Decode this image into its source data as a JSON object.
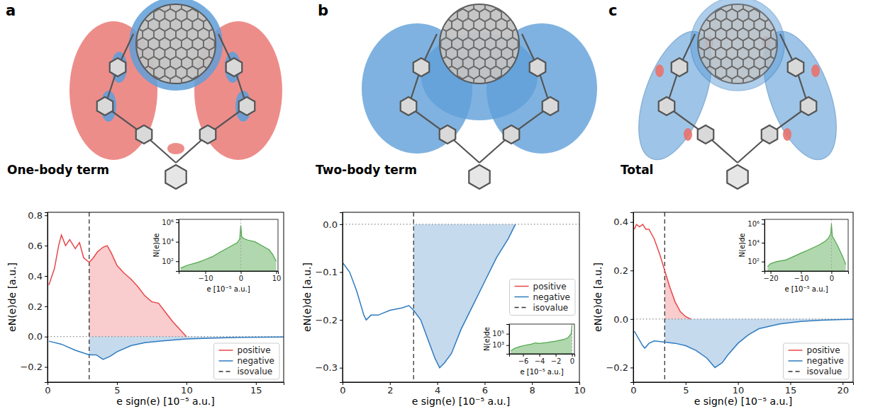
{
  "chart_data": [
    {
      "type": "line",
      "panel_label": "a",
      "title": "One-body term",
      "x_label": "e sign(e)  [10⁻⁵ a.u.]",
      "y_label": "eN(e)de  [a.u.]",
      "xlim": [
        0,
        17
      ],
      "xticks": [
        0,
        5,
        10,
        15
      ],
      "ylim": [
        -0.3,
        0.82
      ],
      "yticks": [
        {
          "value": -0.2,
          "label": "−0.2"
        },
        {
          "value": 0,
          "label": "0.0"
        },
        0.2,
        0.4,
        0.6,
        0.8
      ],
      "legend": "lower right",
      "series": [
        {
          "name": "positive",
          "color": "#e8474a",
          "line_style": "solid",
          "x": [
            0.1,
            0.5,
            0.8,
            1.0,
            1.3,
            1.6,
            2.0,
            2.3,
            2.6,
            3.0,
            3.3,
            3.6,
            4.0,
            4.3,
            4.6,
            5.0,
            5.5,
            6.0,
            6.5,
            7.0,
            7.5,
            8.0,
            8.5,
            9.0,
            9.5,
            10.0
          ],
          "values": [
            0.34,
            0.45,
            0.6,
            0.67,
            0.6,
            0.64,
            0.58,
            0.62,
            0.52,
            0.49,
            0.52,
            0.56,
            0.59,
            0.6,
            0.55,
            0.47,
            0.42,
            0.38,
            0.33,
            0.27,
            0.23,
            0.22,
            0.16,
            0.1,
            0.05,
            0.0
          ]
        },
        {
          "name": "negative",
          "color": "#2f7bbf",
          "line_style": "solid",
          "x": [
            0.1,
            1.0,
            2.0,
            3.0,
            3.5,
            4.0,
            4.5,
            5.0,
            6.0,
            7.0,
            8.0,
            10.0,
            12.0,
            14.0,
            17.0
          ],
          "values": [
            -0.03,
            -0.05,
            -0.09,
            -0.12,
            -0.12,
            -0.15,
            -0.13,
            -0.1,
            -0.06,
            -0.04,
            -0.03,
            -0.015,
            -0.01,
            -0.005,
            -0.002
          ]
        }
      ],
      "reference_lines": [
        {
          "name": "isovalue",
          "x": 3,
          "color": "#333333",
          "line_style": "dashed"
        },
        {
          "y": 0,
          "color": "#8a8a8a",
          "line_style": "dotted"
        }
      ],
      "inset": {
        "type": "area",
        "x_label": "e  [10⁻⁵ a.u.]",
        "y_label": "N(e)de",
        "log": "y",
        "xlim": [
          -17.5,
          10.5
        ],
        "xticks": [
          {
            "value": -10,
            "label": "−10"
          },
          0,
          10
        ],
        "ylim": [
          10,
          2000000
        ],
        "yticks": [
          {
            "value": 100,
            "label": "10²"
          },
          {
            "value": 10000,
            "label": "10⁴"
          },
          {
            "value": 1000000,
            "label": "10⁶"
          }
        ],
        "color": "#4fa64a",
        "x": [
          -17,
          -15,
          -12,
          -10,
          -8,
          -6,
          -4,
          -2,
          -1,
          -0.3,
          0,
          0.3,
          1,
          2,
          4,
          6,
          8,
          9,
          10
        ],
        "values": [
          20,
          40,
          80,
          150,
          300,
          800,
          2000,
          5000,
          8000,
          20000,
          500000,
          30000,
          20000,
          15000,
          10000,
          4000,
          1500,
          500,
          100
        ],
        "reference_lines": [
          {
            "x": 0,
            "color": "#999999",
            "line_style": "dotted"
          }
        ]
      }
    },
    {
      "type": "line",
      "panel_label": "b",
      "title": "Two-body term",
      "x_label": "e sign(e)  [10⁻⁵ a.u.]",
      "y_label": "eN(e)de  [a.u.]",
      "xlim": [
        0,
        10
      ],
      "xticks": [
        0,
        2,
        4,
        6,
        8,
        10
      ],
      "ylim": [
        -0.33,
        0.025
      ],
      "yticks": [
        {
          "value": -0.3,
          "label": "−0.3"
        },
        {
          "value": -0.2,
          "label": "−0.2"
        },
        {
          "value": -0.1,
          "label": "−0.1"
        },
        {
          "value": 0,
          "label": "0.0"
        }
      ],
      "legend": "center right",
      "series": [
        {
          "name": "positive",
          "color": "#e8474a",
          "line_style": "solid",
          "x": [],
          "values": []
        },
        {
          "name": "negative",
          "color": "#2f7bbf",
          "line_style": "solid",
          "x": [
            0,
            0.3,
            0.6,
            0.9,
            1.0,
            1.2,
            1.5,
            2.0,
            2.5,
            2.8,
            3.0,
            3.3,
            3.6,
            3.9,
            4.1,
            4.3,
            4.6,
            5.0,
            5.5,
            6.0,
            6.5,
            7.0,
            7.3
          ],
          "values": [
            -0.08,
            -0.1,
            -0.14,
            -0.19,
            -0.2,
            -0.19,
            -0.19,
            -0.18,
            -0.175,
            -0.17,
            -0.18,
            -0.2,
            -0.24,
            -0.28,
            -0.3,
            -0.29,
            -0.27,
            -0.22,
            -0.17,
            -0.12,
            -0.07,
            -0.03,
            0.0
          ]
        }
      ],
      "reference_lines": [
        {
          "name": "isovalue",
          "x": 3,
          "color": "#333333",
          "line_style": "dashed"
        },
        {
          "y": 0,
          "color": "#8a8a8a",
          "line_style": "dotted"
        }
      ],
      "inset": {
        "type": "area",
        "x_label": "e  [10⁻⁵ a.u.]",
        "y_label": "N(e)de",
        "log": "y",
        "xlim": [
          -7.7,
          0.3
        ],
        "xticks": [
          {
            "value": -6,
            "label": "−6"
          },
          {
            "value": -4,
            "label": "−4"
          },
          {
            "value": -2,
            "label": "−2"
          },
          0
        ],
        "ylim": [
          30,
          5000000
        ],
        "yticks": [
          {
            "value": 1000,
            "label": "10³"
          },
          {
            "value": 100000,
            "label": "10⁵"
          }
        ],
        "color": "#4fa64a",
        "x": [
          -7.5,
          -7,
          -6.5,
          -6,
          -5,
          -4.5,
          -4,
          -3,
          -2,
          -1,
          -0.5,
          -0.1,
          0
        ],
        "values": [
          100,
          300,
          500,
          800,
          1500,
          2500,
          2000,
          3000,
          5000,
          10000,
          20000,
          100000,
          3000000
        ],
        "reference_lines": [
          {
            "x": 0,
            "color": "#999999",
            "line_style": "dotted"
          }
        ]
      }
    },
    {
      "type": "line",
      "panel_label": "c",
      "title": "Total",
      "x_label": "e sign(e)  [10⁻⁵ a.u.]",
      "y_label": "eN(e)de  [a.u.]",
      "xlim": [
        0,
        21
      ],
      "xticks": [
        0,
        5,
        10,
        15,
        20
      ],
      "ylim": [
        -0.26,
        0.44
      ],
      "yticks": [
        {
          "value": -0.2,
          "label": "−0.2"
        },
        {
          "value": 0,
          "label": "0.0"
        },
        0.2,
        0.4
      ],
      "legend": "lower right",
      "series": [
        {
          "name": "positive",
          "color": "#e8474a",
          "line_style": "solid",
          "x": [
            0.1,
            0.3,
            0.6,
            0.9,
            1.2,
            1.5,
            2.0,
            2.5,
            3.0,
            3.5,
            4.0,
            4.5,
            5.0,
            5.5
          ],
          "values": [
            0.37,
            0.39,
            0.38,
            0.39,
            0.37,
            0.37,
            0.33,
            0.27,
            0.2,
            0.13,
            0.07,
            0.03,
            0.01,
            0.0
          ]
        },
        {
          "name": "negative",
          "color": "#2f7bbf",
          "line_style": "solid",
          "x": [
            0.1,
            0.5,
            0.9,
            1.1,
            1.5,
            2.0,
            3.0,
            4.0,
            5.0,
            6.0,
            7.0,
            7.8,
            8.5,
            9.0,
            10.0,
            11.0,
            12.0,
            14.0,
            16.0,
            18.0,
            20.0,
            21.0
          ],
          "values": [
            -0.05,
            -0.08,
            -0.11,
            -0.12,
            -0.1,
            -0.09,
            -0.095,
            -0.1,
            -0.11,
            -0.13,
            -0.16,
            -0.2,
            -0.18,
            -0.15,
            -0.1,
            -0.065,
            -0.04,
            -0.02,
            -0.01,
            -0.005,
            -0.002,
            -0.001
          ]
        }
      ],
      "reference_lines": [
        {
          "name": "isovalue",
          "x": 3,
          "color": "#333333",
          "line_style": "dashed"
        },
        {
          "y": 0,
          "color": "#8a8a8a",
          "line_style": "dotted"
        }
      ],
      "inset": {
        "type": "area",
        "x_label": "e  [10⁻⁵ a.u.]",
        "y_label": "N(e)de",
        "log": "y",
        "xlim": [
          -22,
          5.5
        ],
        "xticks": [
          {
            "value": -20,
            "label": "−20"
          },
          {
            "value": -10,
            "label": "−10"
          },
          0
        ],
        "ylim": [
          10,
          3000000
        ],
        "yticks": [
          {
            "value": 100,
            "label": "10²"
          },
          {
            "value": 10000,
            "label": "10⁴"
          },
          {
            "value": 1000000,
            "label": "10⁶"
          }
        ],
        "color": "#4fa64a",
        "x": [
          -21,
          -20,
          -18,
          -15,
          -12,
          -10,
          -8,
          -6,
          -4,
          -2,
          -1,
          -0.2,
          0,
          0.3,
          1,
          2,
          3,
          4,
          4.7
        ],
        "values": [
          30,
          60,
          100,
          150,
          400,
          800,
          1500,
          3000,
          6000,
          15000,
          30000,
          100000,
          1000000,
          50000,
          20000,
          5000,
          1000,
          200,
          50
        ],
        "reference_lines": [
          {
            "x": 0,
            "color": "#999999",
            "line_style": "dotted"
          }
        ]
      }
    }
  ]
}
